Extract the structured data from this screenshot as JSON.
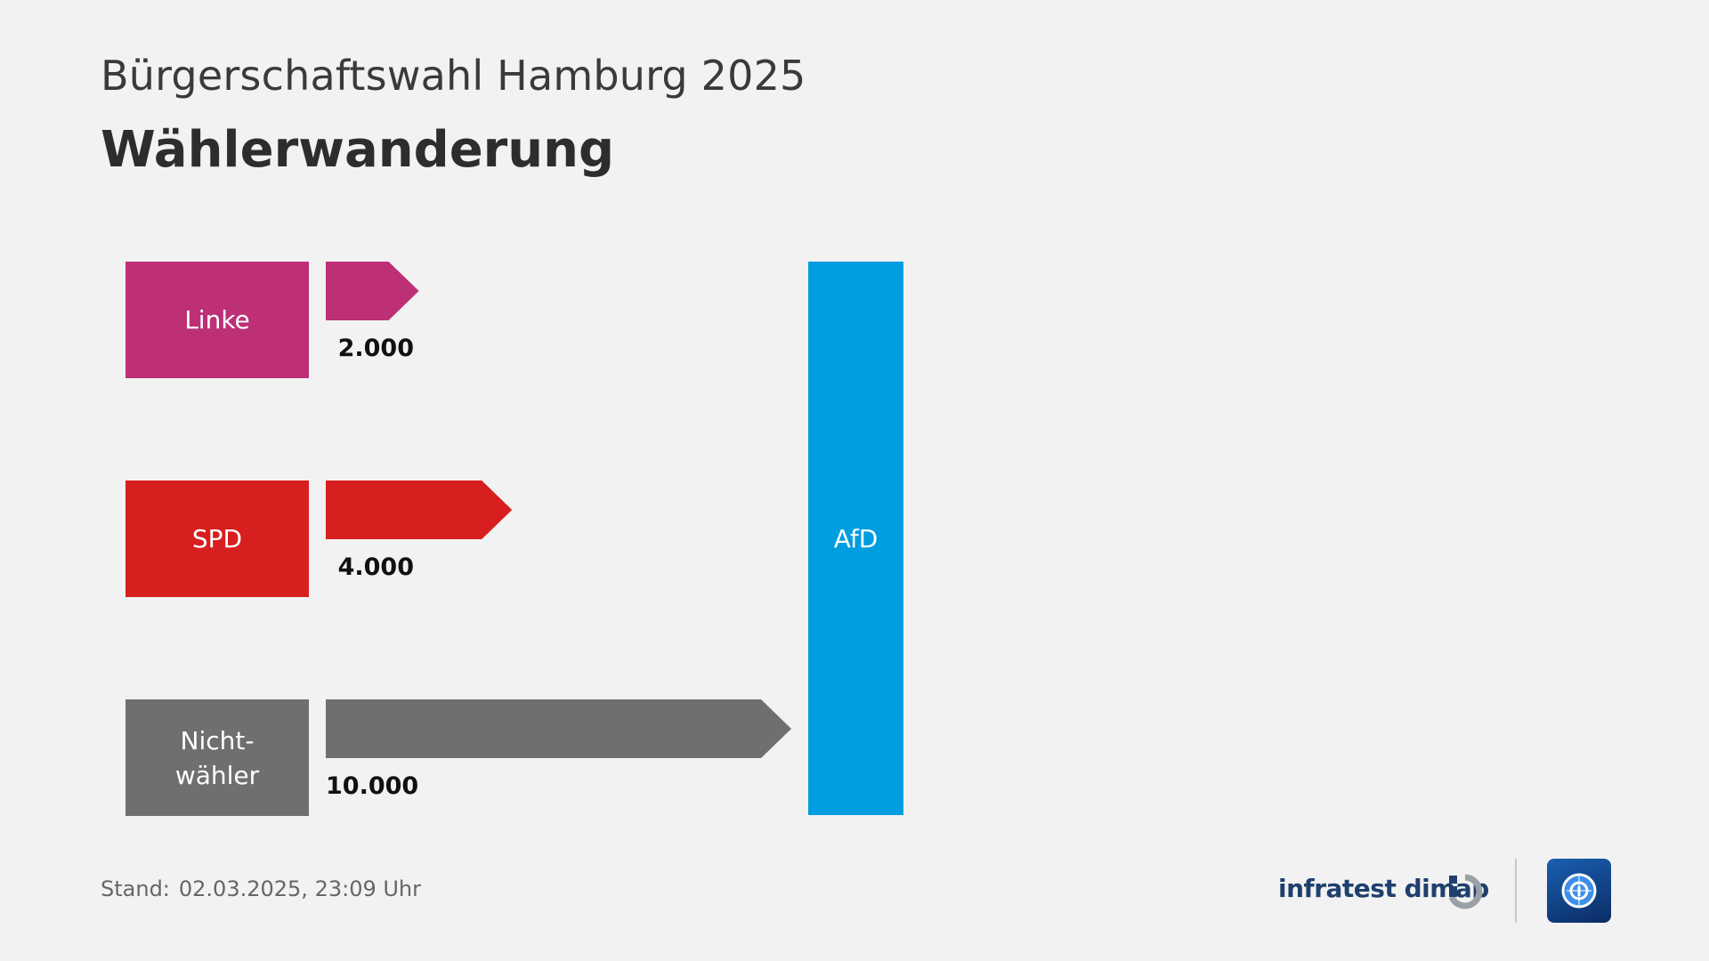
{
  "header": {
    "subtitle": "Bürgerschaftswahl Hamburg 2025",
    "title": "Wählerwanderung"
  },
  "chart_data": {
    "type": "bar",
    "categories": [
      "Linke",
      "SPD",
      "Nicht-\nwähler"
    ],
    "values": [
      2000,
      4000,
      10000
    ],
    "value_labels": [
      "2.000",
      "4.000",
      "10.000"
    ],
    "colors": [
      "#bd3075",
      "#d71f1f",
      "#6f6f71"
    ],
    "target": {
      "label": "AfD",
      "color": "#009de0"
    }
  },
  "footer": {
    "stand_label": "Stand:",
    "stand_value": "02.03.2025, 23:09 Uhr",
    "brand": "infratest dimap",
    "brand_icon": "infratest-dimap-logo-icon",
    "broadcaster_icon": "tagesschau-logo-icon"
  }
}
